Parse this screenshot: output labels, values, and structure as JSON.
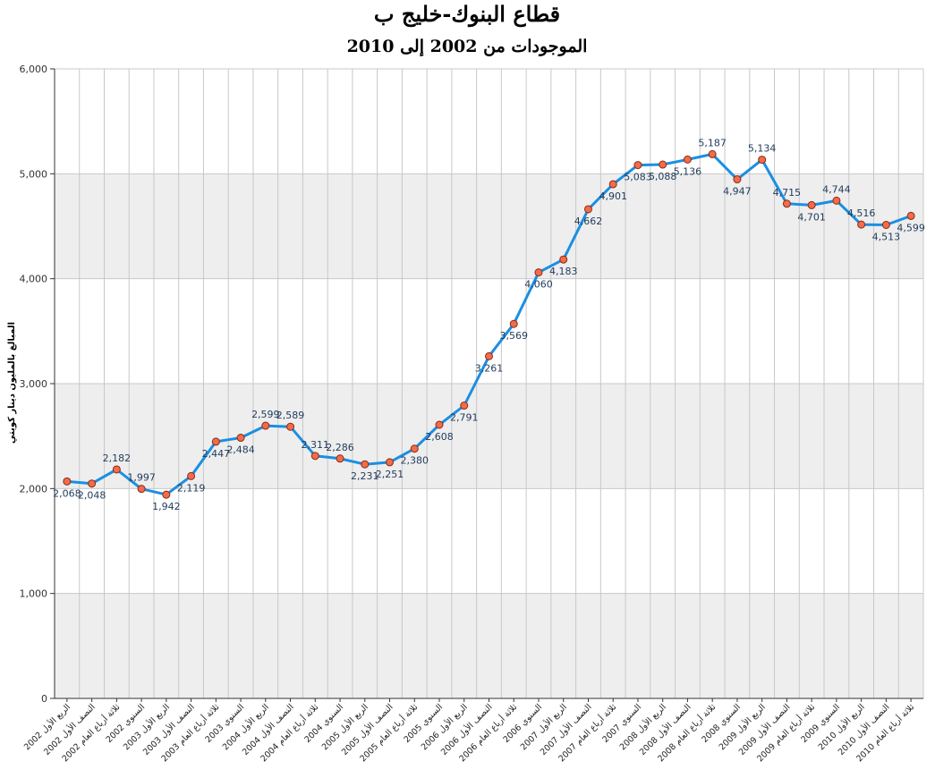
{
  "chart_data": {
    "type": "line",
    "title": "قطاع البنوك-خليج ب",
    "subtitle": "الموجودات من 2002 إلى 2010",
    "ylabel": "المبالغ بالمليون دينار كويتي",
    "xlabel": "",
    "ylim": [
      0,
      6000
    ],
    "yticks": [
      0,
      1000,
      2000,
      3000,
      4000,
      5000,
      6000
    ],
    "ytick_labels": [
      "0",
      "1,000",
      "2,000",
      "3,000",
      "4,000",
      "5,000",
      "6,000"
    ],
    "grid": true,
    "colors": {
      "line": "#1a8fe3",
      "marker_fill": "#f26b4b",
      "marker_stroke": "#8a2a10",
      "band": "#eeeeee",
      "grid": "#c8c8c8"
    },
    "categories": [
      "الربع الأول 2002",
      "النصف الأول 2002",
      "ثلاثة أرباع العام 2002",
      "السنوي 2002",
      "الربع الأول 2003",
      "النصف الأول 2003",
      "ثلاثة أرباع العام 2003",
      "السنوي 2003",
      "الربع الأول 2004",
      "النصف الأول 2004",
      "ثلاثة أرباع العام 2004",
      "السنوي 2004",
      "الربع الأول 2005",
      "النصف الأول 2005",
      "ثلاثة أرباع العام 2005",
      "السنوي 2005",
      "الربع الأول 2006",
      "النصف الأول 2006",
      "ثلاثة أرباع العام 2006",
      "السنوي 2006",
      "الربع الأول 2007",
      "النصف الأول 2007",
      "ثلاثة أرباع العام 2007",
      "السنوي 2007",
      "الربع الأول 2008",
      "النصف الأول 2008",
      "ثلاثة أرباع العام 2008",
      "السنوي 2008",
      "الربع الأول 2009",
      "النصف الأول 2009",
      "ثلاثة أرباع العام 2009",
      "السنوي 2009",
      "الربع الأول 2010",
      "النصف الأول 2010",
      "ثلاثة أرباع العام 2010"
    ],
    "values": [
      2068,
      2048,
      2182,
      1997,
      1942,
      2119,
      2447,
      2484,
      2599,
      2589,
      2311,
      2286,
      2231,
      2251,
      2380,
      2608,
      2791,
      3261,
      3569,
      4060,
      4183,
      4662,
      4901,
      5083,
      5088,
      5136,
      5187,
      4947,
      5134,
      4715,
      4701,
      4744,
      4516,
      4513,
      4599
    ],
    "value_labels": [
      "2,068",
      "2,048",
      "2,182",
      "1,997",
      "1,942",
      "2,119",
      "2,447",
      "2,484",
      "2,599",
      "2,589",
      "2,311",
      "2,286",
      "2,231",
      "2,251",
      "2,380",
      "2,608",
      "2,791",
      "3,261",
      "3,569",
      "4,060",
      "4,183",
      "4,662",
      "4,901",
      "5,083",
      "5,088",
      "5,136",
      "5,187",
      "4,947",
      "5,134",
      "4,715",
      "4,701",
      "4,744",
      "4,516",
      "4,513",
      "4,599"
    ]
  }
}
